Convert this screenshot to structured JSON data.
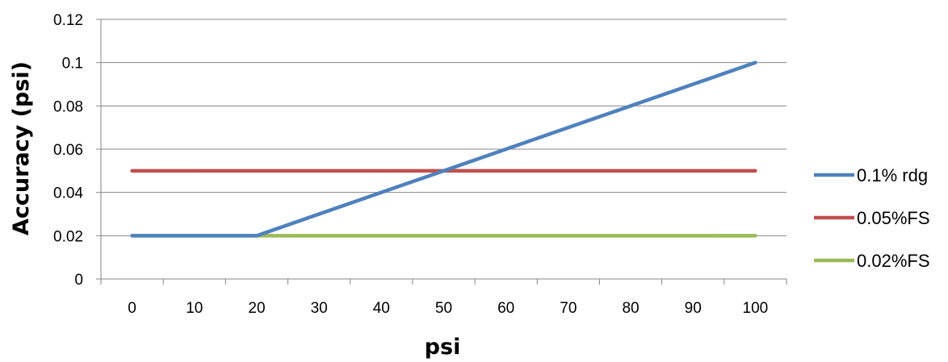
{
  "chart_data": {
    "type": "line",
    "title": "",
    "xlabel": "psi",
    "ylabel": "Accuracy (psi)",
    "categories": [
      "0",
      "10",
      "20",
      "30",
      "40",
      "50",
      "60",
      "70",
      "80",
      "90",
      "100"
    ],
    "y_ticks": [
      "0",
      "0.02",
      "0.04",
      "0.06",
      "0.08",
      "0.1",
      "0.12"
    ],
    "ylim": [
      0,
      0.12
    ],
    "grid": "horizontal",
    "legend": "right",
    "series": [
      {
        "name": "0.1% rdg",
        "color": "#4F81BD",
        "values": [
          0.02,
          0.02,
          0.02,
          0.03,
          0.04,
          0.05,
          0.06,
          0.07,
          0.08,
          0.09,
          0.1
        ]
      },
      {
        "name": "0.05%FS",
        "color": "#C0504D",
        "values": [
          0.05,
          0.05,
          0.05,
          0.05,
          0.05,
          0.05,
          0.05,
          0.05,
          0.05,
          0.05,
          0.05
        ]
      },
      {
        "name": "0.02%FS",
        "color": "#9BBB59",
        "values": [
          0.02,
          0.02,
          0.02,
          0.02,
          0.02,
          0.02,
          0.02,
          0.02,
          0.02,
          0.02,
          0.02
        ]
      }
    ]
  }
}
